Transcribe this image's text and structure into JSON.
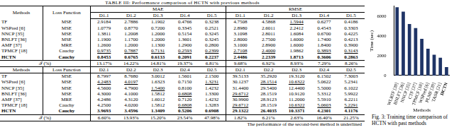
{
  "title": "TABLE III: Performance comparison of HCTN with previous methods",
  "table": {
    "col_methods": "Methods",
    "col_loss": "Loss Function",
    "groups": [
      "MAE",
      "RMSE"
    ],
    "blocks": [
      {
        "datasets": [
          "D1.1",
          "D1.2",
          "D1.3",
          "D1.4",
          "D1.5",
          "D1.1",
          "D1.2",
          "D1.3",
          "D1.4",
          "D1.5"
        ],
        "rows": [
          {
            "method": "TF",
            "loss": "MSE",
            "values": [
              "2.9184",
              "2.7886",
              "1.1902",
              "0.4766",
              "0.3238",
              "4.7508",
              "4.5868",
              "1.5944",
              "0.6277",
              "0.4186"
            ]
          },
          {
            "method": "WSPred [6]",
            "loss": "MSE",
            "values": [
              "1.0779",
              "0.8770",
              "0.7200",
              "0.3345",
              "0.2521",
              "2.8980",
              "2.6011",
              "2.2412",
              "0.4543",
              "0.3303"
            ]
          },
          {
            "method": "NNCP [35]",
            "loss": "MSE",
            "values": [
              "1.3811",
              "1.2008",
              "1.2000",
              "0.5154",
              "0.3245",
              "3.1098",
              "2.8011",
              "1.6084",
              "0.6700",
              "0.4225"
            ]
          },
          {
            "method": "BNLFT [36]",
            "loss": "MSE",
            "values": [
              "1.1900",
              "1.1700",
              "1.2000",
              "1.3601",
              "0.3245",
              "2.8000",
              "2.7500",
              "1.6000",
              "1.7400",
              "0.4213"
            ]
          },
          {
            "method": "AMF [37]",
            "loss": "MRE",
            "values": [
              "1.2600",
              "1.2000",
              "1.1300",
              "1.2900",
              "0.2800",
              "3.1000",
              "2.8900",
              "1.6000",
              "1.8400",
              "0.3900"
            ]
          },
          {
            "method": "TPMCF [18]",
            "loss": "Cauchy",
            "values": [
              "0.9735",
              "0.7887",
              "0.7131",
              "0.2593",
              "0.2399",
              "2.7108",
              "2.4000",
              "1.9862",
              "0.3893",
              "0.3143"
            ]
          },
          {
            "method": "HCTN",
            "loss": "Cauchy",
            "values": [
              "0.8453",
              "0.6765",
              "0.6133",
              "0.2091",
              "0.2237",
              "2.4486",
              "2.2339",
              "1.8713",
              "0.3606",
              "0.2863"
            ]
          }
        ],
        "improvement": {
          "label": "ℐ (%)",
          "values": [
            "13.17%",
            "14.22%",
            "14.81%",
            "19.37%",
            "6.81%",
            "9.68%",
            "6.92%",
            "8.93%",
            "7.29%",
            "8.26%"
          ]
        }
      },
      {
        "datasets": [
          "D2.1",
          "D2.2",
          "D2.3",
          "D2.4",
          "D2.5",
          "D2.1",
          "D2.2",
          "D2.3",
          "D2.4",
          "D2.5"
        ],
        "rows": [
          {
            "method": "TF",
            "loss": "MSE",
            "values": [
              "8.7997",
              "8.7680",
              "3.0012",
              "1.5601",
              "2.1500",
              "39.5133",
              "35.2920",
              "19.3120",
              "6.1502",
              "7.3003"
            ]
          },
          {
            "method": "WSPred [6]",
            "loss": "MSE",
            "values": [
              "4.2483",
              "4.0197",
              "1.6323",
              "0.7150",
              "1.3231",
              "30.1237",
              "28.1514",
              "10.6322",
              "5.0622",
              "5.2341"
            ]
          },
          {
            "method": "NNCP [35]",
            "loss": "MSE",
            "values": [
              "4.5600",
              "4.7900",
              "1.5400",
              "0.8100",
              "1.4232",
              "31.4400",
              "29.5400",
              "12.4400",
              "5.5000",
              "6.1022"
            ]
          },
          {
            "method": "BNLFT [36]",
            "loss": "MSE",
            "values": [
              "4.3000",
              "4.1000",
              "1.5812",
              "0.6808",
              "1.3300",
              "29.6712",
              "28.1519",
              "10.9120",
              "5.3312",
              "5.9922"
            ]
          },
          {
            "method": "AMF [37]",
            "loss": "MRE",
            "values": [
              "4.2486",
              "4.3120",
              "1.6012",
              "0.7120",
              "1.4232",
              "30.9900",
              "28.9123",
              "11.2000",
              "5.5910",
              "6.2211"
            ]
          },
          {
            "method": "TPMCF [18]",
            "loss": "Cauchy",
            "values": [
              "4.2500",
              "4.0200",
              "1.5812",
              "0.6808",
              "1.3283",
              "29.6712",
              "28.1519",
              "10.6322",
              "5.0603",
              "5.2291"
            ]
          },
          {
            "method": "HCTN",
            "loss": "Cauchy",
            "values": [
              "3.9693",
              "3.4596",
              "1.3409",
              "0.5206",
              "0.6908",
              "29.1322",
              "26.4035",
              "10.3371",
              "4.2301",
              "4.1176"
            ]
          }
        ],
        "improvement": {
          "label": "ℐ (%)",
          "values": [
            "6.60%",
            "13.93%",
            "15.20%",
            "23.54%",
            "47.98%",
            "1.82%",
            "6.21%",
            "2.63%",
            "16.40%",
            "21.25%"
          ]
        }
      }
    ],
    "footnote": "The performance of the second-best method is underlined"
  },
  "chart_data": {
    "type": "bar",
    "title": "Fig. 3: Training time comparison of HCTN with past methods",
    "x_label": "Methods",
    "y_label": "Time (sec)",
    "categories": [
      "WLRTF [39]",
      "BNLFT [36]",
      "NNCP [35]",
      "CTF [37]",
      "TPMCF [18]",
      "WSPred [6]",
      "PLMF [39]",
      "TASR [21]",
      "HCTN"
    ],
    "values": [
      6900,
      6450,
      5200,
      4800,
      3700,
      2700,
      2100,
      1800,
      850
    ],
    "color": "#1f3466",
    "ylim": [
      0,
      7000
    ],
    "yticks": [
      0,
      2000,
      4000,
      6000
    ],
    "grid": false
  }
}
